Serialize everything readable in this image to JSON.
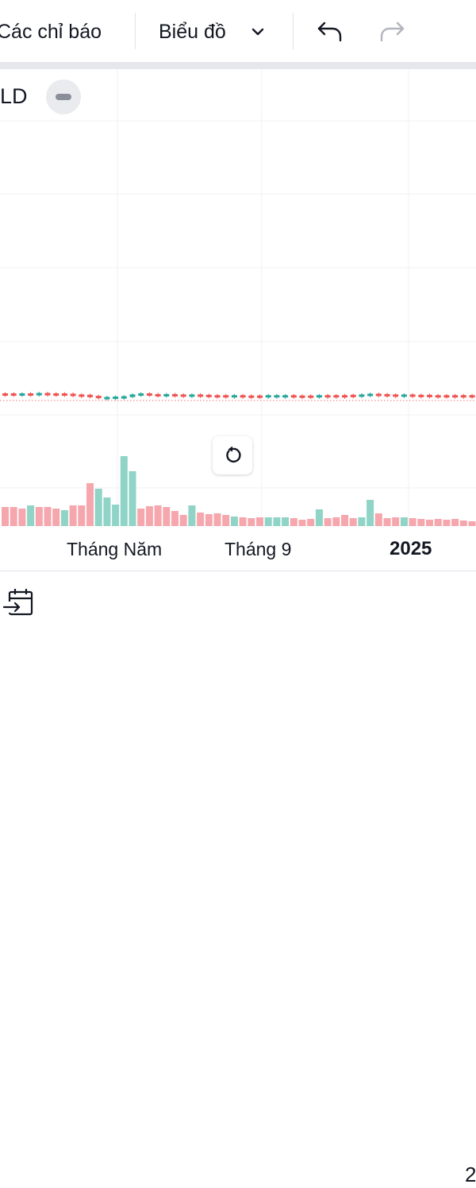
{
  "toolbar": {
    "indicators_label": "Các chỉ báo",
    "chart_type_label": "Biểu đồ",
    "undo_icon": "undo-arrow-icon",
    "redo_icon": "redo-arrow-icon",
    "chevron_icon": "chevron-down-icon"
  },
  "chart": {
    "symbol_label": "LD",
    "time_labels": [
      "Tháng Năm",
      "Tháng 9",
      "2025"
    ],
    "reset_icon": "reset-rotate-icon",
    "collapse_icon": "collapse-minus-icon",
    "colors": {
      "up": "#26a69a",
      "down": "#ef5350",
      "up_volume": "#8fd4c6",
      "down_volume": "#f5a7ad",
      "grid": "#f0f1f3"
    }
  },
  "chart_data": {
    "type": "bar",
    "volume": [
      {
        "dir": "down",
        "v": 24
      },
      {
        "dir": "down",
        "v": 24
      },
      {
        "dir": "down",
        "v": 22
      },
      {
        "dir": "up",
        "v": 26
      },
      {
        "dir": "down",
        "v": 24
      },
      {
        "dir": "down",
        "v": 24
      },
      {
        "dir": "down",
        "v": 22
      },
      {
        "dir": "up",
        "v": 20
      },
      {
        "dir": "down",
        "v": 26
      },
      {
        "dir": "down",
        "v": 26
      },
      {
        "dir": "down",
        "v": 54
      },
      {
        "dir": "up",
        "v": 47
      },
      {
        "dir": "up",
        "v": 36
      },
      {
        "dir": "up",
        "v": 27
      },
      {
        "dir": "up",
        "v": 88
      },
      {
        "dir": "up",
        "v": 69
      },
      {
        "dir": "down",
        "v": 22
      },
      {
        "dir": "down",
        "v": 25
      },
      {
        "dir": "down",
        "v": 26
      },
      {
        "dir": "down",
        "v": 24
      },
      {
        "dir": "down",
        "v": 19
      },
      {
        "dir": "down",
        "v": 14
      },
      {
        "dir": "up",
        "v": 26
      },
      {
        "dir": "down",
        "v": 17
      },
      {
        "dir": "down",
        "v": 15
      },
      {
        "dir": "down",
        "v": 16
      },
      {
        "dir": "down",
        "v": 14
      },
      {
        "dir": "up",
        "v": 12
      },
      {
        "dir": "down",
        "v": 11
      },
      {
        "dir": "down",
        "v": 10
      },
      {
        "dir": "down",
        "v": 11
      },
      {
        "dir": "up",
        "v": 11
      },
      {
        "dir": "up",
        "v": 11
      },
      {
        "dir": "up",
        "v": 11
      },
      {
        "dir": "down",
        "v": 10
      },
      {
        "dir": "down",
        "v": 8
      },
      {
        "dir": "down",
        "v": 9
      },
      {
        "dir": "up",
        "v": 21
      },
      {
        "dir": "down",
        "v": 10
      },
      {
        "dir": "down",
        "v": 11
      },
      {
        "dir": "down",
        "v": 14
      },
      {
        "dir": "down",
        "v": 10
      },
      {
        "dir": "up",
        "v": 11
      },
      {
        "dir": "up",
        "v": 33
      },
      {
        "dir": "down",
        "v": 16
      },
      {
        "dir": "down",
        "v": 10
      },
      {
        "dir": "down",
        "v": 11
      },
      {
        "dir": "up",
        "v": 11
      },
      {
        "dir": "down",
        "v": 10
      },
      {
        "dir": "down",
        "v": 9
      },
      {
        "dir": "down",
        "v": 8
      },
      {
        "dir": "down",
        "v": 9
      },
      {
        "dir": "down",
        "v": 8
      },
      {
        "dir": "down",
        "v": 9
      },
      {
        "dir": "down",
        "v": 7
      },
      {
        "dir": "down",
        "v": 6
      },
      {
        "dir": "down",
        "v": 5
      }
    ],
    "candles": [
      {
        "dir": "down",
        "o": 0,
        "c": 0
      },
      {
        "dir": "down",
        "o": 0,
        "c": -1
      },
      {
        "dir": "up",
        "o": -1,
        "c": 0
      },
      {
        "dir": "down",
        "o": 0,
        "c": -1
      },
      {
        "dir": "up",
        "o": -1,
        "c": 1
      },
      {
        "dir": "down",
        "o": 1,
        "c": 0
      },
      {
        "dir": "down",
        "o": 0,
        "c": 0
      },
      {
        "dir": "down",
        "o": 0,
        "c": -1
      },
      {
        "dir": "down",
        "o": -1,
        "c": -3
      },
      {
        "dir": "down",
        "o": -3,
        "c": -4
      },
      {
        "dir": "down",
        "o": -4,
        "c": -7
      },
      {
        "dir": "down",
        "o": -7,
        "c": -9
      },
      {
        "dir": "up",
        "o": -10,
        "c": -10
      },
      {
        "dir": "up",
        "o": -10,
        "c": -9
      },
      {
        "dir": "up",
        "o": -9,
        "c": -8
      },
      {
        "dir": "up",
        "o": -8,
        "c": -3
      },
      {
        "dir": "up",
        "o": -3,
        "c": 0
      },
      {
        "dir": "down",
        "o": 0,
        "c": -2
      },
      {
        "dir": "down",
        "o": -2,
        "c": -3
      },
      {
        "dir": "up",
        "o": -3,
        "c": -2
      },
      {
        "dir": "down",
        "o": -2,
        "c": -3
      },
      {
        "dir": "down",
        "o": -3,
        "c": -4
      },
      {
        "dir": "up",
        "o": -4,
        "c": -3
      },
      {
        "dir": "down",
        "o": -3,
        "c": -4
      },
      {
        "dir": "down",
        "o": -4,
        "c": -5
      },
      {
        "dir": "down",
        "o": -5,
        "c": -5
      },
      {
        "dir": "down",
        "o": -5,
        "c": -5
      },
      {
        "dir": "up",
        "o": -5,
        "c": -5
      },
      {
        "dir": "down",
        "o": -5,
        "c": -6
      },
      {
        "dir": "down",
        "o": -6,
        "c": -6
      },
      {
        "dir": "down",
        "o": -6,
        "c": -6
      },
      {
        "dir": "up",
        "o": -6,
        "c": -5
      },
      {
        "dir": "up",
        "o": -5,
        "c": -5
      },
      {
        "dir": "up",
        "o": -5,
        "c": -5
      },
      {
        "dir": "down",
        "o": -5,
        "c": -6
      },
      {
        "dir": "down",
        "o": -6,
        "c": -6
      },
      {
        "dir": "down",
        "o": -6,
        "c": -6
      },
      {
        "dir": "up",
        "o": -6,
        "c": -5
      },
      {
        "dir": "down",
        "o": -5,
        "c": -5
      },
      {
        "dir": "down",
        "o": -5,
        "c": -5
      },
      {
        "dir": "down",
        "o": -5,
        "c": -5
      },
      {
        "dir": "down",
        "o": -5,
        "c": -4
      },
      {
        "dir": "up",
        "o": -4,
        "c": -3
      },
      {
        "dir": "up",
        "o": -3,
        "c": -1
      },
      {
        "dir": "down",
        "o": -1,
        "c": -2
      },
      {
        "dir": "down",
        "o": -2,
        "c": -3
      },
      {
        "dir": "down",
        "o": -3,
        "c": -4
      },
      {
        "dir": "up",
        "o": -4,
        "c": -3
      },
      {
        "dir": "down",
        "o": -3,
        "c": -4
      },
      {
        "dir": "down",
        "o": -4,
        "c": -4
      },
      {
        "dir": "down",
        "o": -4,
        "c": -5
      },
      {
        "dir": "down",
        "o": -5,
        "c": -5
      },
      {
        "dir": "down",
        "o": -5,
        "c": -5
      },
      {
        "dir": "down",
        "o": -5,
        "c": -5
      },
      {
        "dir": "down",
        "o": -5,
        "c": -5
      },
      {
        "dir": "down",
        "o": -5,
        "c": -5
      },
      {
        "dir": "down",
        "o": -5,
        "c": -5
      }
    ]
  },
  "footer": {
    "calendar_icon": "calendar-goto-date-icon",
    "right_number": "2"
  }
}
